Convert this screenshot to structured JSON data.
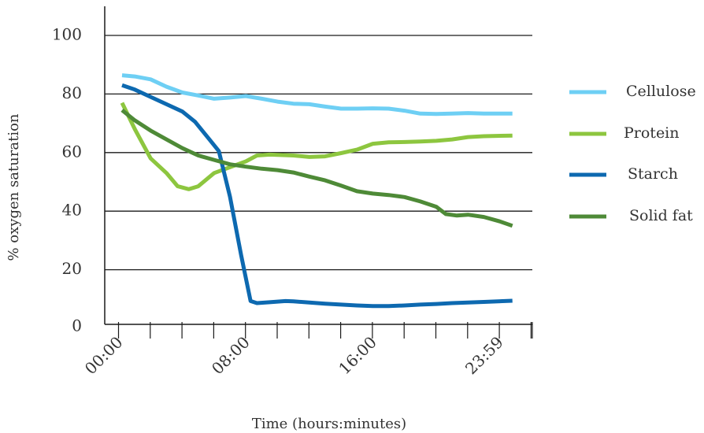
{
  "chart_data": {
    "type": "line",
    "xlabel": "Time (hours:minutes)",
    "ylabel": "% oxygen saturation",
    "ylim": [
      0,
      100
    ],
    "yticks": [
      0,
      20,
      40,
      60,
      80,
      100
    ],
    "xlim_hours": [
      -0.3,
      26.1
    ],
    "xticks": [
      {
        "hours": 0,
        "label": "00:00"
      },
      {
        "hours": 8,
        "label": "08:00"
      },
      {
        "hours": 16,
        "label": "16:00"
      },
      {
        "hours": 23.98,
        "label": "23:59"
      }
    ],
    "grid": true,
    "legend_position": "right",
    "series": [
      {
        "name": "Cellulose",
        "color": "#6ecff4",
        "points": [
          [
            0.2,
            86.4
          ],
          [
            1,
            86
          ],
          [
            2,
            85
          ],
          [
            3,
            82.5
          ],
          [
            4,
            80.5
          ],
          [
            5,
            79.5
          ],
          [
            6,
            78.4
          ],
          [
            7,
            78.8
          ],
          [
            8,
            79.3
          ],
          [
            9,
            78.4
          ],
          [
            10,
            77.4
          ],
          [
            11,
            76.7
          ],
          [
            12,
            76.5
          ],
          [
            13,
            75.7
          ],
          [
            14,
            75
          ],
          [
            15,
            75
          ],
          [
            16,
            75.1
          ],
          [
            17,
            75
          ],
          [
            18,
            74.3
          ],
          [
            19,
            73.3
          ],
          [
            20,
            73.2
          ],
          [
            21,
            73.3
          ],
          [
            22,
            73.5
          ],
          [
            23,
            73.3
          ],
          [
            24.8,
            73.3
          ]
        ]
      },
      {
        "name": "Protein",
        "color": "#8dc63f",
        "points": [
          [
            0.2,
            77
          ],
          [
            1,
            68
          ],
          [
            2,
            58
          ],
          [
            3,
            53
          ],
          [
            3.7,
            48.5
          ],
          [
            4.4,
            47.5
          ],
          [
            5,
            48.5
          ],
          [
            6,
            53
          ],
          [
            7,
            55
          ],
          [
            8,
            57
          ],
          [
            8.7,
            59
          ],
          [
            9.5,
            59.3
          ],
          [
            11,
            59
          ],
          [
            12,
            58.5
          ],
          [
            13,
            58.7
          ],
          [
            14,
            59.8
          ],
          [
            15,
            61
          ],
          [
            16,
            63
          ],
          [
            17,
            63.5
          ],
          [
            18,
            63.6
          ],
          [
            19,
            63.8
          ],
          [
            20,
            64
          ],
          [
            21,
            64.5
          ],
          [
            22,
            65.3
          ],
          [
            23,
            65.6
          ],
          [
            24.8,
            65.8
          ]
        ]
      },
      {
        "name": "Starch",
        "color": "#0d69b0",
        "points": [
          [
            0.2,
            83
          ],
          [
            1,
            81.5
          ],
          [
            2,
            79
          ],
          [
            3,
            76.5
          ],
          [
            4,
            74
          ],
          [
            4.8,
            70.5
          ],
          [
            5.7,
            64.5
          ],
          [
            6.3,
            60.5
          ],
          [
            7,
            45
          ],
          [
            7.7,
            25
          ],
          [
            8.3,
            9.3
          ],
          [
            8.7,
            8.6
          ],
          [
            9.5,
            8.9
          ],
          [
            10.5,
            9.3
          ],
          [
            11,
            9.2
          ],
          [
            12,
            8.8
          ],
          [
            13,
            8.4
          ],
          [
            14,
            8.1
          ],
          [
            15,
            7.8
          ],
          [
            16,
            7.6
          ],
          [
            17,
            7.6
          ],
          [
            18,
            7.8
          ],
          [
            19,
            8.1
          ],
          [
            20,
            8.3
          ],
          [
            21,
            8.6
          ],
          [
            22,
            8.8
          ],
          [
            23,
            9
          ],
          [
            24.8,
            9.4
          ]
        ]
      },
      {
        "name": "Solid fat",
        "color": "#4e8a37",
        "points": [
          [
            0.2,
            74.5
          ],
          [
            1,
            71
          ],
          [
            2,
            67.5
          ],
          [
            3,
            64.5
          ],
          [
            4,
            61.5
          ],
          [
            5,
            59
          ],
          [
            6,
            57.5
          ],
          [
            7,
            56
          ],
          [
            8,
            55.2
          ],
          [
            9,
            54.5
          ],
          [
            10,
            54
          ],
          [
            11,
            53.2
          ],
          [
            12,
            51.8
          ],
          [
            13,
            50.5
          ],
          [
            14,
            48.7
          ],
          [
            15,
            46.8
          ],
          [
            16,
            46
          ],
          [
            17,
            45.5
          ],
          [
            18,
            44.8
          ],
          [
            19,
            43.3
          ],
          [
            20,
            41.5
          ],
          [
            20.6,
            39
          ],
          [
            21.3,
            38.5
          ],
          [
            22,
            38.8
          ],
          [
            23,
            38
          ],
          [
            24,
            36.5
          ],
          [
            24.8,
            35
          ]
        ]
      }
    ]
  }
}
